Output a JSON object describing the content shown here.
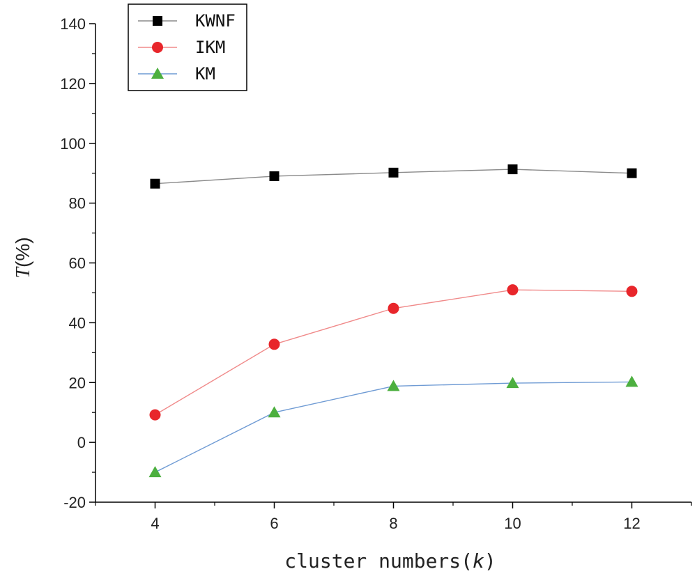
{
  "chart_data": {
    "type": "line",
    "x": [
      4,
      6,
      8,
      10,
      12
    ],
    "series": [
      {
        "name": "KWNF",
        "values": [
          86.5,
          89,
          90.2,
          91.3,
          90
        ],
        "color": "#000000",
        "line_color": "#8a8a8a",
        "marker": "square"
      },
      {
        "name": "IKM",
        "values": [
          9.2,
          32.8,
          44.8,
          51,
          50.5
        ],
        "color": "#e8262b",
        "line_color": "#f08a8a",
        "marker": "circle"
      },
      {
        "name": "KM",
        "values": [
          -10,
          10,
          18.8,
          19.8,
          20.2
        ],
        "color": "#4caf3f",
        "line_color": "#6f9bd4",
        "marker": "triangle"
      }
    ],
    "xlabel_main": "cluster numbers(",
    "xlabel_var": "k",
    "xlabel_end": ")",
    "ylabel_var": "T",
    "ylabel_unit": "(%)",
    "xlim": [
      3,
      13
    ],
    "ylim": [
      -20,
      140
    ],
    "xticks": [
      4,
      6,
      8,
      10,
      12
    ],
    "yticks": [
      -20,
      0,
      20,
      40,
      60,
      80,
      100,
      120,
      140
    ],
    "grid": false,
    "legend_position": "top-left"
  }
}
